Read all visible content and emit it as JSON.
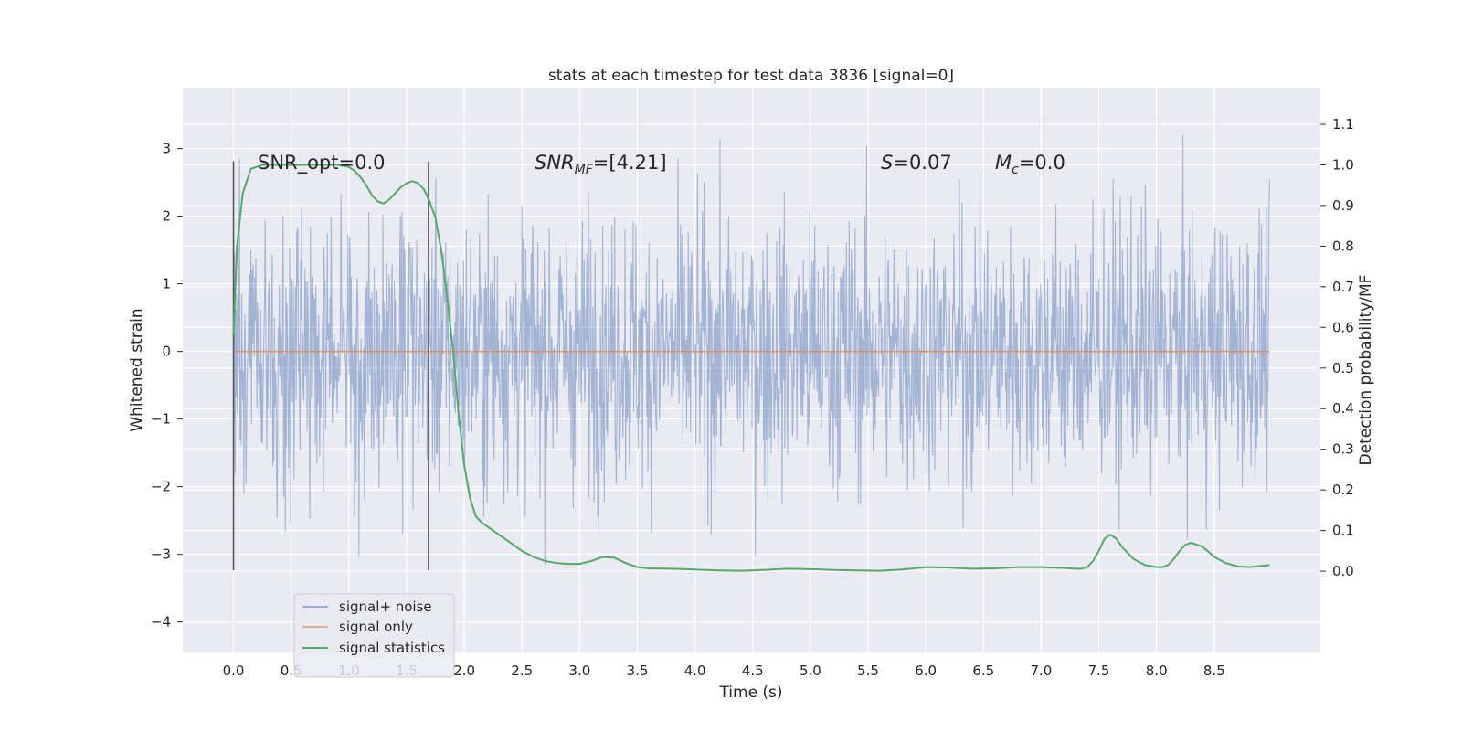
{
  "chart_data": {
    "type": "line",
    "title": "stats at each timestep for test data 3836 [signal=0]",
    "xlabel": "Time (s)",
    "ylabel_left": "Whitened strain",
    "ylabel_right": "Detection probability/MF",
    "xlim": [
      -0.44,
      9.42
    ],
    "ylim_left": [
      -4.45,
      3.9
    ],
    "ylim_right": [
      -0.2,
      1.19
    ],
    "x_ticks": [
      "0.0",
      "0.5",
      "1.0",
      "1.5",
      "2.0",
      "2.5",
      "3.0",
      "3.5",
      "4.0",
      "4.5",
      "5.0",
      "5.5",
      "6.0",
      "6.5",
      "7.0",
      "7.5",
      "8.0",
      "8.5"
    ],
    "y_left_ticks": [
      "3",
      "2",
      "1",
      "0",
      "−1",
      "−2",
      "−3",
      "−4"
    ],
    "y_right_ticks": [
      "1.1",
      "1.0",
      "0.9",
      "0.8",
      "0.7",
      "0.6",
      "0.5",
      "0.4",
      "0.3",
      "0.2",
      "0.1",
      "0.0"
    ],
    "grid": true,
    "legend_position": "lower-left",
    "annotations": {
      "snr_opt": "SNR_opt=0.0",
      "snr_mf_main": "SNR",
      "snr_mf_sub": "MF",
      "snr_mf_rest": "=[4.21]",
      "s_main": "S",
      "s_rest": "=0.07",
      "mc_main": "M",
      "mc_sub": "c",
      "mc_rest": "=0.0"
    },
    "vertical_markers": [
      0.0,
      1.69
    ],
    "series": [
      {
        "name": "signal+ noise",
        "color": "#4c72b0",
        "description_range": [
          -4.0,
          3.6
        ],
        "x_range": [
          0.0,
          8.98
        ]
      },
      {
        "name": "signal only",
        "color": "#dd8452",
        "x": [
          0.0,
          8.98
        ],
        "y": [
          0.0,
          0.0
        ]
      },
      {
        "name": "signal statistics",
        "color": "#55a868",
        "axis": "right",
        "x": [
          0.0,
          0.03,
          0.08,
          0.15,
          0.2,
          0.25,
          0.3,
          0.5,
          0.7,
          0.9,
          1.0,
          1.05,
          1.1,
          1.15,
          1.2,
          1.25,
          1.3,
          1.35,
          1.4,
          1.45,
          1.5,
          1.55,
          1.6,
          1.65,
          1.7,
          1.75,
          1.8,
          1.85,
          1.9,
          1.95,
          2.0,
          2.05,
          2.1,
          2.15,
          2.2,
          2.3,
          2.4,
          2.5,
          2.6,
          2.7,
          2.8,
          2.9,
          3.0,
          3.1,
          3.2,
          3.3,
          3.4,
          3.5,
          3.6,
          3.8,
          4.0,
          4.2,
          4.4,
          4.6,
          4.8,
          5.0,
          5.2,
          5.4,
          5.6,
          5.8,
          6.0,
          6.2,
          6.4,
          6.6,
          6.8,
          7.0,
          7.1,
          7.2,
          7.3,
          7.35,
          7.4,
          7.45,
          7.5,
          7.55,
          7.6,
          7.65,
          7.7,
          7.8,
          7.9,
          8.0,
          8.05,
          8.1,
          8.15,
          8.2,
          8.25,
          8.3,
          8.4,
          8.5,
          8.6,
          8.7,
          8.8,
          8.98
        ],
        "y": [
          0.58,
          0.8,
          0.93,
          0.99,
          0.995,
          1.0,
          1.0,
          1.0,
          1.0,
          1.0,
          0.995,
          0.985,
          0.97,
          0.95,
          0.925,
          0.91,
          0.905,
          0.915,
          0.93,
          0.945,
          0.955,
          0.96,
          0.955,
          0.94,
          0.91,
          0.87,
          0.79,
          0.68,
          0.55,
          0.39,
          0.26,
          0.18,
          0.135,
          0.12,
          0.11,
          0.09,
          0.07,
          0.05,
          0.035,
          0.025,
          0.02,
          0.018,
          0.018,
          0.025,
          0.035,
          0.033,
          0.02,
          0.01,
          0.007,
          0.006,
          0.004,
          0.002,
          0.001,
          0.003,
          0.006,
          0.005,
          0.003,
          0.002,
          0.001,
          0.004,
          0.01,
          0.009,
          0.006,
          0.007,
          0.01,
          0.01,
          0.009,
          0.008,
          0.006,
          0.006,
          0.01,
          0.025,
          0.05,
          0.08,
          0.09,
          0.08,
          0.06,
          0.03,
          0.015,
          0.01,
          0.01,
          0.015,
          0.03,
          0.05,
          0.065,
          0.07,
          0.06,
          0.035,
          0.02,
          0.012,
          0.01,
          0.015
        ]
      }
    ]
  }
}
